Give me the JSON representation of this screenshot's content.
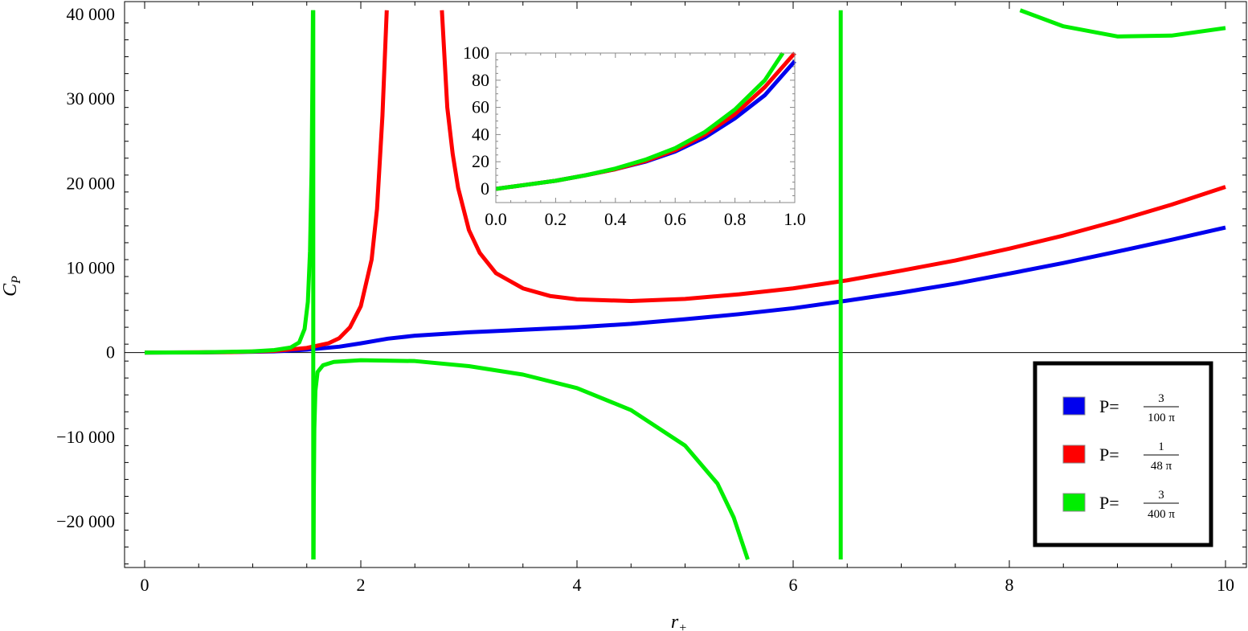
{
  "chart_data": [
    {
      "type": "line",
      "title": "",
      "xlabel": "r",
      "xlabel_sub": "+",
      "ylabel": "C",
      "ylabel_sub": "P",
      "xlim": [
        0,
        10
      ],
      "ylim": [
        -25000,
        40500
      ],
      "x_ticks": [
        0,
        2,
        4,
        6,
        8,
        10
      ],
      "x_tick_labels": [
        "0",
        "2",
        "4",
        "6",
        "8",
        "10"
      ],
      "y_ticks": [
        -20000,
        -10000,
        0,
        10000,
        20000,
        30000,
        40000
      ],
      "y_tick_labels": [
        "−20 000",
        "−10 000",
        "0",
        "10 000",
        "20 000",
        "30 000",
        "40 000"
      ],
      "grid": false,
      "legend_position": "bottom-right",
      "series": [
        {
          "name": "P=3/(100π)",
          "legend": {
            "prefix": "P=",
            "num": "3",
            "den": "100 π"
          },
          "color": "#0000ee",
          "segments": [
            [
              [
                0,
                0
              ],
              [
                0.5,
                20
              ],
              [
                1,
                100
              ],
              [
                1.2,
                150
              ],
              [
                1.5,
                350
              ],
              [
                1.8,
                700
              ],
              [
                2,
                1100
              ],
              [
                2.25,
                1650
              ],
              [
                2.5,
                2000
              ],
              [
                3,
                2400
              ],
              [
                3.5,
                2700
              ],
              [
                4,
                3000
              ],
              [
                4.5,
                3400
              ],
              [
                5,
                3950
              ],
              [
                5.5,
                4550
              ],
              [
                6,
                5250
              ],
              [
                6.5,
                6150
              ],
              [
                7,
                7100
              ],
              [
                7.5,
                8150
              ],
              [
                8,
                9350
              ],
              [
                8.5,
                10600
              ],
              [
                9,
                11950
              ],
              [
                9.5,
                13350
              ],
              [
                10,
                14800
              ]
            ]
          ]
        },
        {
          "name": "P=1/(48π)",
          "legend": {
            "prefix": "P=",
            "num": "1",
            "den": "48 π"
          },
          "color": "#ff0000",
          "segments": [
            [
              [
                0,
                0
              ],
              [
                0.8,
                50
              ],
              [
                1.2,
                200
              ],
              [
                1.5,
                550
              ],
              [
                1.7,
                1100
              ],
              [
                1.8,
                1700
              ],
              [
                1.9,
                3000
              ],
              [
                2.0,
                5500
              ],
              [
                2.1,
                11000
              ],
              [
                2.15,
                17000
              ],
              [
                2.2,
                28000
              ],
              [
                2.24,
                40500
              ]
            ],
            [
              [
                2.75,
                40500
              ],
              [
                2.8,
                29000
              ],
              [
                2.85,
                23500
              ],
              [
                2.9,
                19500
              ],
              [
                3.0,
                14500
              ],
              [
                3.1,
                11800
              ],
              [
                3.25,
                9400
              ],
              [
                3.5,
                7600
              ],
              [
                3.75,
                6700
              ],
              [
                4.0,
                6300
              ],
              [
                4.5,
                6100
              ],
              [
                5.0,
                6350
              ],
              [
                5.5,
                6900
              ],
              [
                6.0,
                7600
              ],
              [
                6.5,
                8550
              ],
              [
                7.0,
                9700
              ],
              [
                7.5,
                10900
              ],
              [
                8.0,
                12300
              ],
              [
                8.5,
                13850
              ],
              [
                9.0,
                15600
              ],
              [
                9.5,
                17500
              ],
              [
                10.0,
                19600
              ]
            ]
          ]
        },
        {
          "name": "P=3/(400π)",
          "legend": {
            "prefix": "P=",
            "num": "3",
            "den": "400 π"
          },
          "color": "#00ee00",
          "segments": [
            [
              [
                0,
                0
              ],
              [
                0.5,
                30
              ],
              [
                1.0,
                150
              ],
              [
                1.2,
                300
              ],
              [
                1.35,
                600
              ],
              [
                1.43,
                1200
              ],
              [
                1.48,
                2800
              ],
              [
                1.51,
                6000
              ],
              [
                1.53,
                12000
              ],
              [
                1.545,
                22000
              ],
              [
                1.553,
                33000
              ],
              [
                1.557,
                40500
              ]
            ],
            [
              [
                1.563,
                -24500
              ],
              [
                1.565,
                -17000
              ],
              [
                1.57,
                -9000
              ],
              [
                1.58,
                -4500
              ],
              [
                1.6,
                -2300
              ],
              [
                1.65,
                -1500
              ],
              [
                1.75,
                -1100
              ],
              [
                2.0,
                -900
              ],
              [
                2.5,
                -1000
              ],
              [
                3.0,
                -1600
              ],
              [
                3.5,
                -2600
              ],
              [
                4.0,
                -4200
              ],
              [
                4.5,
                -6800
              ],
              [
                5.0,
                -11000
              ],
              [
                5.3,
                -15500
              ],
              [
                5.45,
                -19500
              ],
              [
                5.58,
                -24500
              ]
            ],
            [
              [
                1.56,
                -24500
              ],
              [
                1.56,
                40500
              ]
            ],
            [
              [
                6.44,
                -24500
              ],
              [
                6.44,
                40500
              ]
            ],
            [
              [
                8.1,
                40500
              ],
              [
                8.5,
                38600
              ],
              [
                9.0,
                37400
              ],
              [
                9.5,
                37500
              ],
              [
                10.0,
                38400
              ]
            ]
          ]
        }
      ]
    },
    {
      "type": "line",
      "title": "",
      "xlabel": "",
      "ylabel": "",
      "xlim": [
        0,
        1
      ],
      "ylim": [
        -5,
        100
      ],
      "x_ticks": [
        0,
        0.2,
        0.4,
        0.6,
        0.8,
        1.0
      ],
      "x_tick_labels": [
        "0.0",
        "0.2",
        "0.4",
        "0.6",
        "0.8",
        "1.0"
      ],
      "y_ticks": [
        0,
        20,
        40,
        60,
        80,
        100
      ],
      "y_tick_labels": [
        "0",
        "20",
        "40",
        "60",
        "80",
        "100"
      ],
      "grid": false,
      "series": [
        {
          "color": "#0000ee",
          "segments": [
            [
              [
                0,
                0
              ],
              [
                0.1,
                3
              ],
              [
                0.2,
                6
              ],
              [
                0.3,
                10
              ],
              [
                0.4,
                14.5
              ],
              [
                0.5,
                20
              ],
              [
                0.6,
                27.5
              ],
              [
                0.7,
                38
              ],
              [
                0.8,
                52
              ],
              [
                0.9,
                69
              ],
              [
                1.0,
                94
              ]
            ]
          ]
        },
        {
          "color": "#ff0000",
          "segments": [
            [
              [
                0,
                0
              ],
              [
                0.1,
                3
              ],
              [
                0.2,
                6
              ],
              [
                0.3,
                10
              ],
              [
                0.4,
                14.5
              ],
              [
                0.5,
                20.5
              ],
              [
                0.6,
                28.5
              ],
              [
                0.7,
                40
              ],
              [
                0.8,
                55
              ],
              [
                0.9,
                75
              ],
              [
                1.0,
                100
              ]
            ]
          ]
        },
        {
          "color": "#00ee00",
          "segments": [
            [
              [
                0,
                0
              ],
              [
                0.1,
                3
              ],
              [
                0.2,
                6
              ],
              [
                0.3,
                10
              ],
              [
                0.4,
                15
              ],
              [
                0.5,
                21.5
              ],
              [
                0.6,
                30
              ],
              [
                0.7,
                42
              ],
              [
                0.8,
                58.5
              ],
              [
                0.9,
                80
              ],
              [
                0.96,
                100
              ]
            ]
          ]
        }
      ]
    }
  ]
}
